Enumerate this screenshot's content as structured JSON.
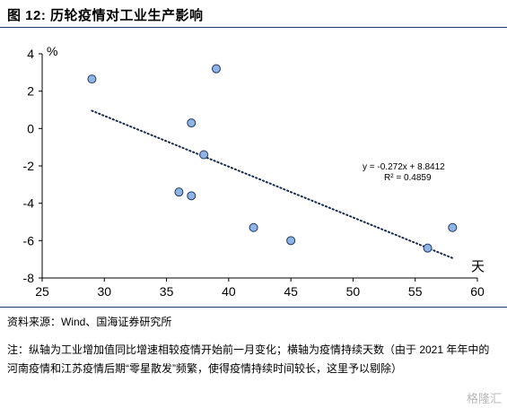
{
  "figure_title": "图 12:  历轮疫情对工业生产影响",
  "source": "资料来源：Wind、国海证券研究所",
  "note": "注：纵轴为工业增加值同比增速相较疫情开始前一月变化；横轴为疫情持续天数（由于 2021 年年中的河南疫情和江苏疫情后期“零星散发”频繁，使得疫情持续时间较长，这里予以剔除）",
  "watermark": "格隆汇",
  "chart_data": {
    "type": "scatter",
    "y_unit": "%",
    "x_unit": "天",
    "xlim": [
      25,
      60
    ],
    "ylim": [
      -8,
      4
    ],
    "x_ticks": [
      "25",
      "30",
      "35",
      "40",
      "45",
      "50",
      "55",
      "60"
    ],
    "y_ticks": [
      "4",
      "2",
      "0",
      "-2",
      "-4",
      "-6",
      "-8"
    ],
    "points": [
      {
        "x": 29,
        "y": 2.65
      },
      {
        "x": 39,
        "y": 3.2
      },
      {
        "x": 37,
        "y": 0.3
      },
      {
        "x": 38,
        "y": -1.4
      },
      {
        "x": 36,
        "y": -3.4
      },
      {
        "x": 37,
        "y": -3.6
      },
      {
        "x": 42,
        "y": -5.3
      },
      {
        "x": 45,
        "y": -6.0
      },
      {
        "x": 56,
        "y": -6.4
      },
      {
        "x": 58,
        "y": -5.3
      }
    ],
    "trendline": {
      "slope": -0.272,
      "intercept": 8.8412,
      "x_range": [
        29,
        58
      ],
      "style": "dotted"
    },
    "equation": "y = -0.272x + 8.8412",
    "r_squared": "R² = 0.4859",
    "marker_color": "#8fb4e3",
    "marker_edge": "#1f3864",
    "grid": false
  }
}
